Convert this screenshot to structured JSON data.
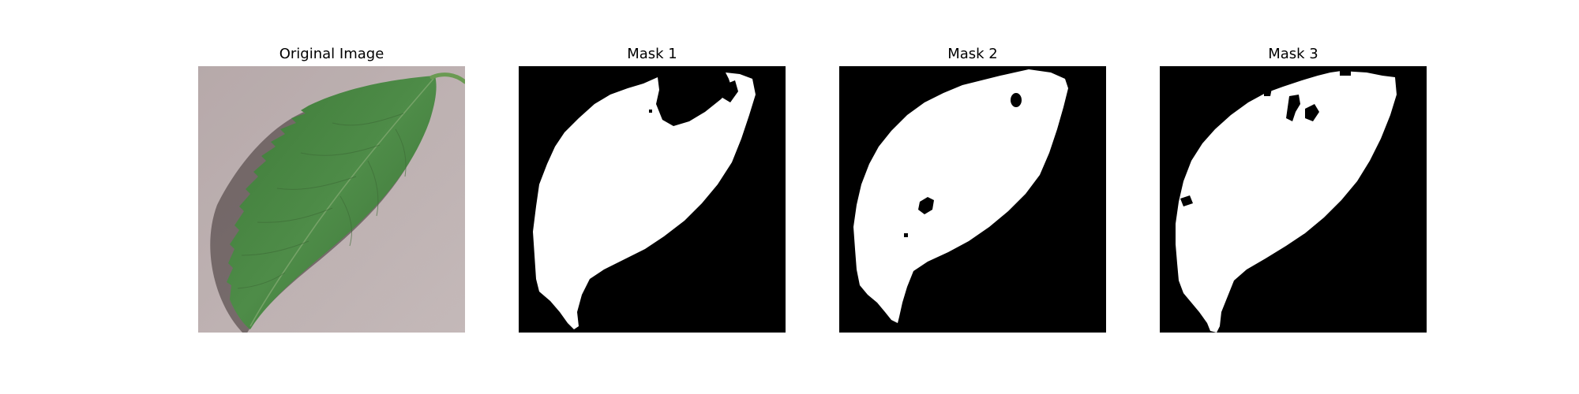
{
  "figure": {
    "panels": [
      {
        "title": "Original Image"
      },
      {
        "title": "Mask 1"
      },
      {
        "title": "Mask 2"
      },
      {
        "title": "Mask 3"
      }
    ]
  },
  "colors": {
    "background": "#ffffff",
    "mask_foreground": "#ffffff",
    "mask_background": "#000000",
    "leaf_green": "#4e8a46",
    "leaf_dark": "#2f5f2c",
    "surface": "#bfb3b3"
  }
}
